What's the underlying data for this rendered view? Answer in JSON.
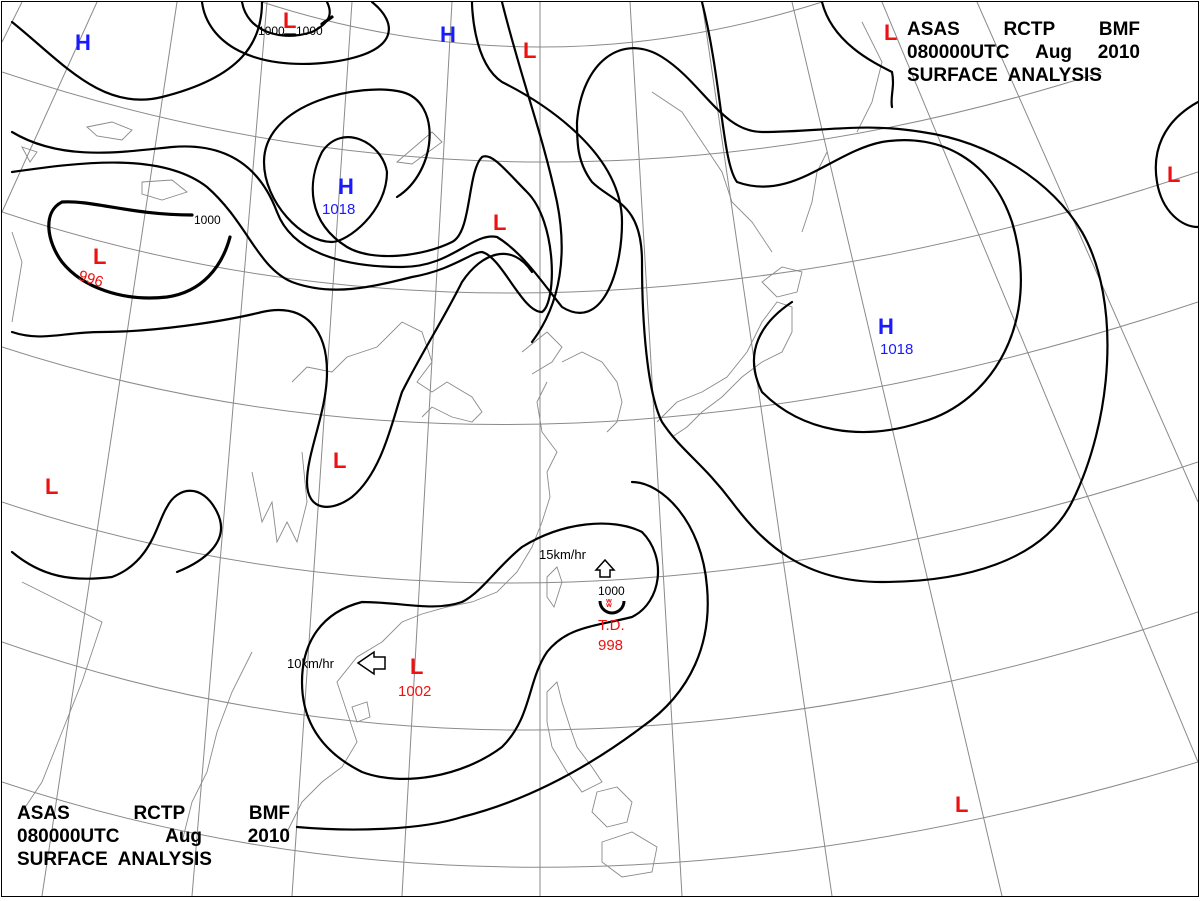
{
  "header_top": {
    "line1": [
      "ASAS",
      "RCTP",
      "BMF"
    ],
    "line2": [
      "080000UTC",
      "Aug",
      "2010"
    ],
    "line3": "SURFACE  ANALYSIS"
  },
  "header_bottom": {
    "line1": [
      "ASAS",
      "RCTP",
      "BMF"
    ],
    "line2": [
      "080000UTC",
      "Aug",
      "2010"
    ],
    "line3": "SURFACE  ANALYSIS"
  },
  "colors": {
    "high": "#1a1aff",
    "low": "#ee1111",
    "isobar": "#000000",
    "grid": "#8a8a8a"
  },
  "pressure_centers": [
    {
      "id": "h-nw",
      "type": "H",
      "value": ""
    },
    {
      "id": "h-top",
      "type": "H",
      "value": ""
    },
    {
      "id": "h-siberia",
      "type": "H",
      "value": "1018"
    },
    {
      "id": "h-pacific",
      "type": "H",
      "value": "1018"
    },
    {
      "id": "l-topcenter",
      "type": "L",
      "value": ""
    },
    {
      "id": "l-topcenter2",
      "type": "L",
      "value": ""
    },
    {
      "id": "l-westlake",
      "type": "L",
      "value": "996"
    },
    {
      "id": "l-mongolia",
      "type": "L",
      "value": ""
    },
    {
      "id": "l-china",
      "type": "L",
      "value": ""
    },
    {
      "id": "l-west",
      "type": "L",
      "value": ""
    },
    {
      "id": "l-topright",
      "type": "L",
      "value": ""
    },
    {
      "id": "l-farright",
      "type": "L",
      "value": ""
    },
    {
      "id": "l-southchina",
      "type": "L",
      "value": "1002"
    },
    {
      "id": "l-pacific-s",
      "type": "L",
      "value": ""
    }
  ],
  "tropical_depression": {
    "label": "T.D.",
    "value": "998",
    "isobar": "1000"
  },
  "isobar_labels": [
    "1000",
    "1000",
    "1000"
  ],
  "motion_vectors": [
    {
      "id": "mv-td",
      "text": "15km/hr"
    },
    {
      "id": "mv-low",
      "text": "10km/hr"
    }
  ]
}
